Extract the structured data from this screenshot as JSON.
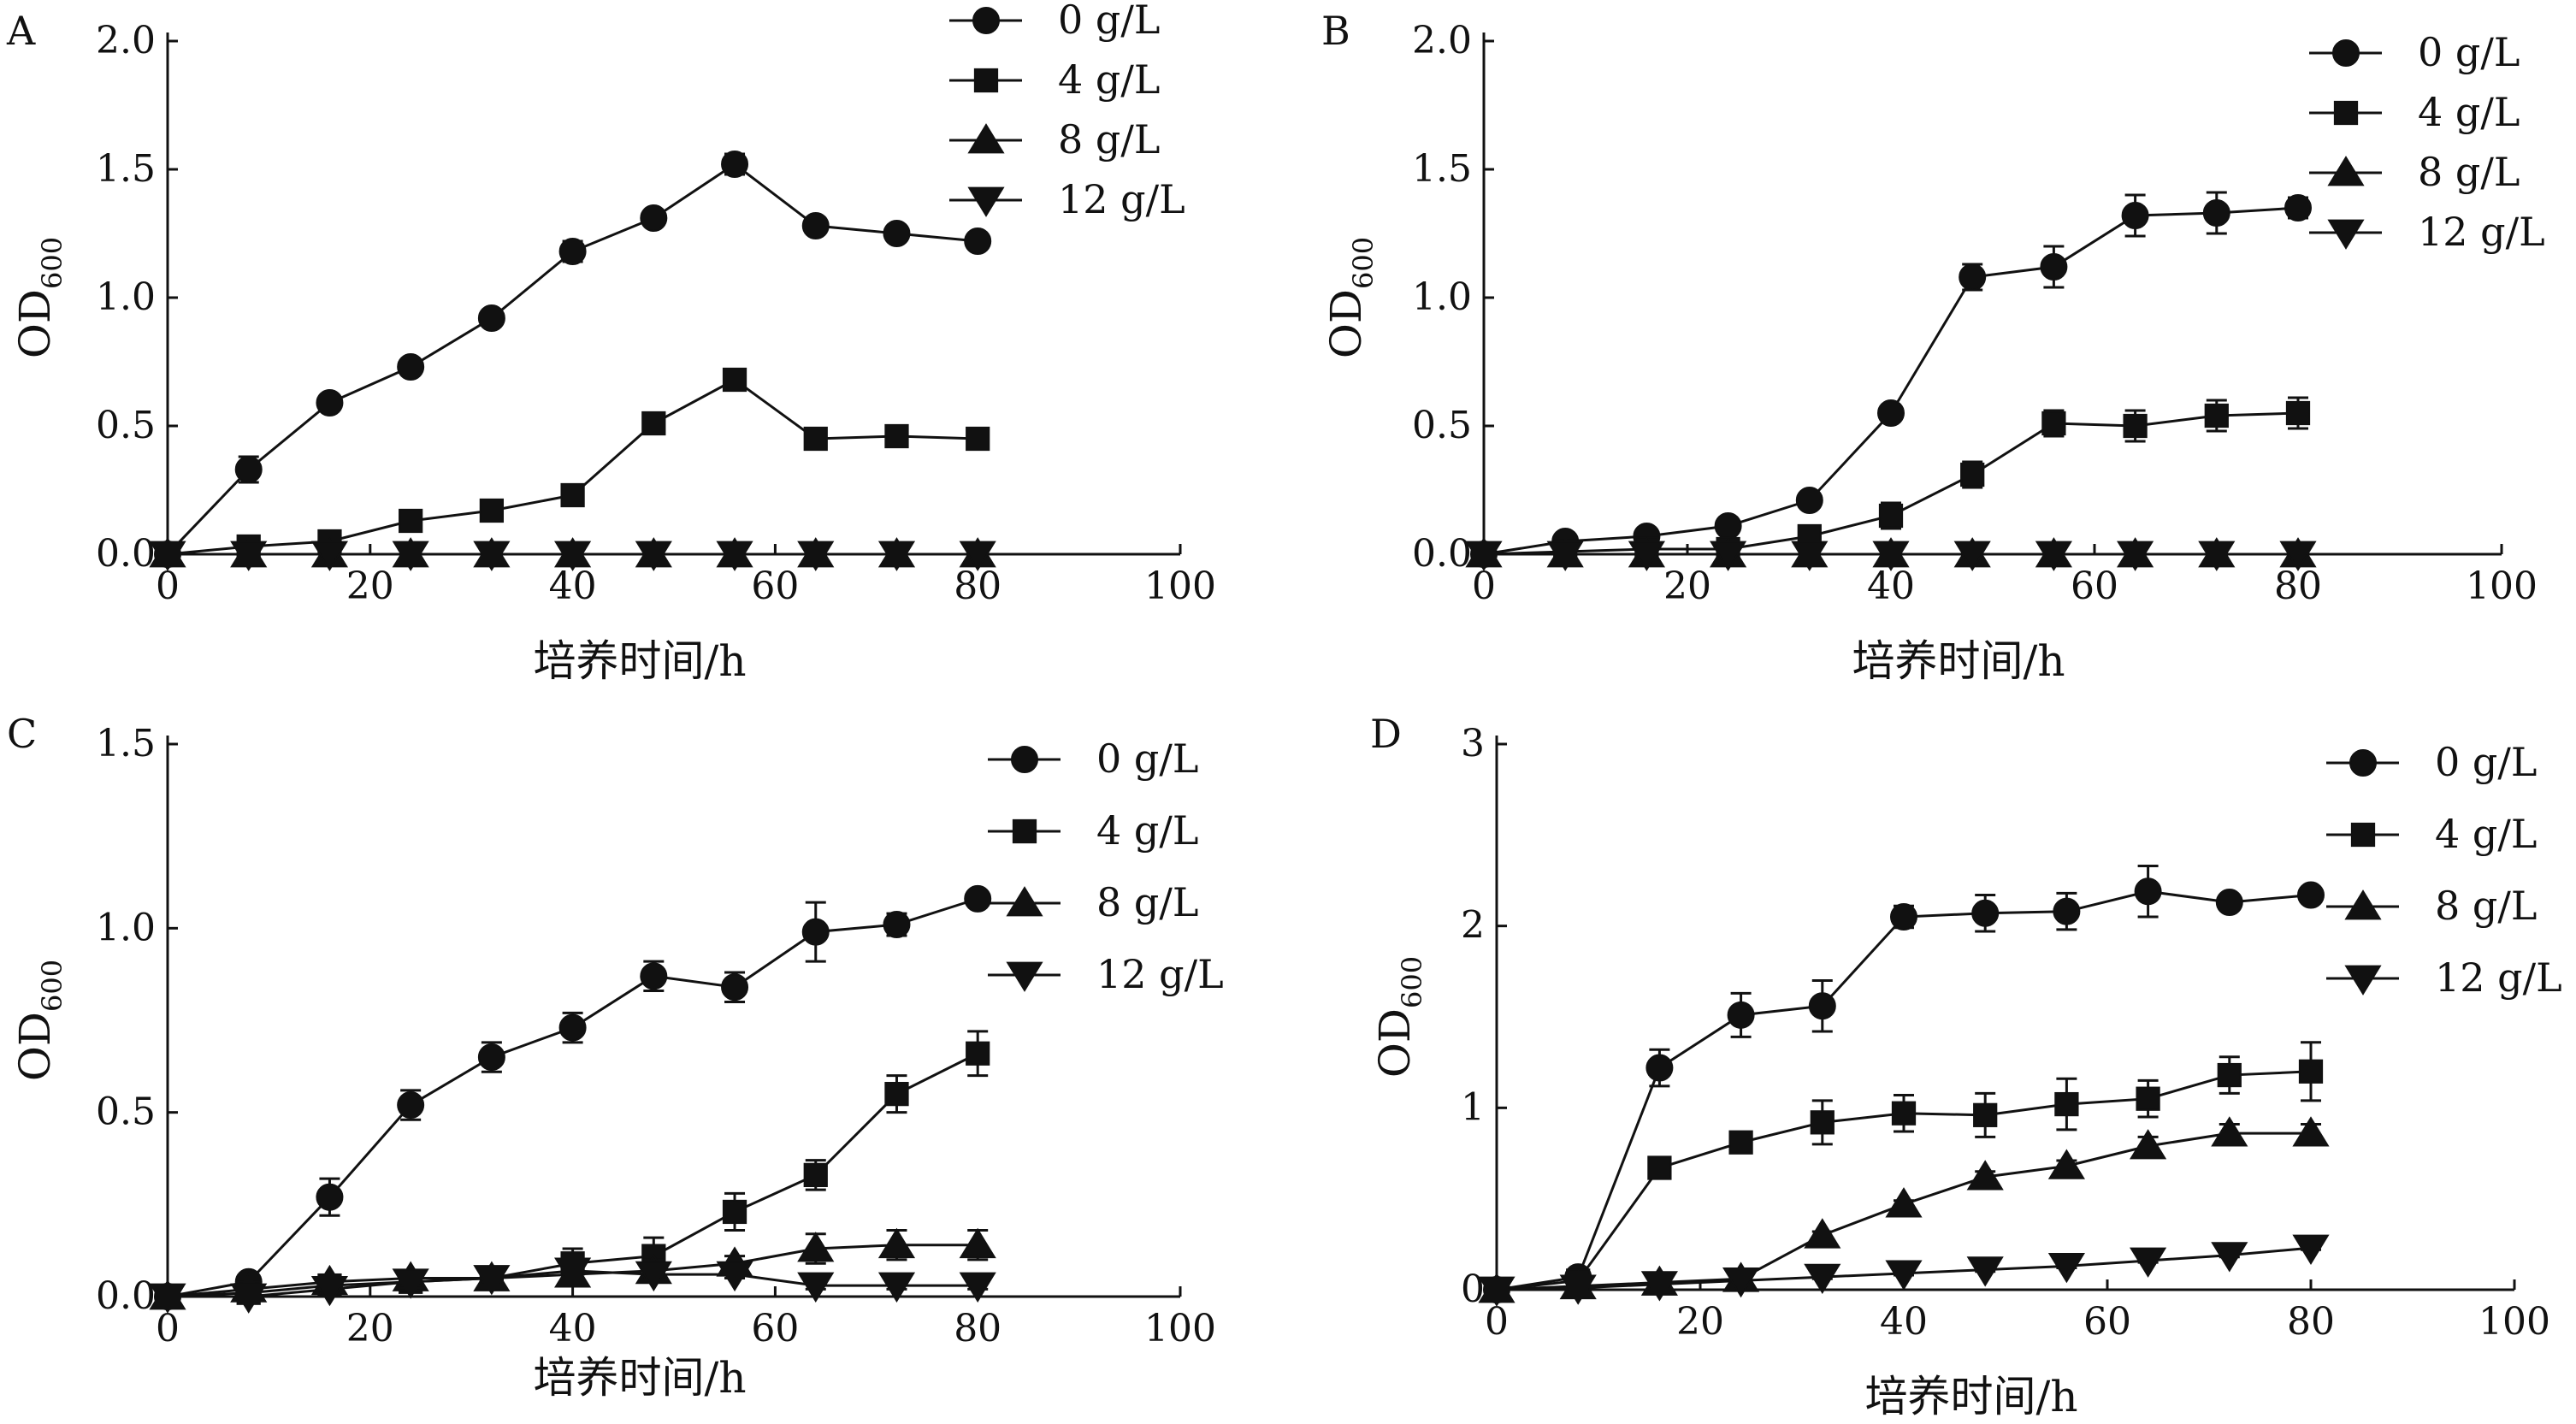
{
  "chart_data": [
    {
      "type": "line",
      "panel": "A",
      "xlabel": "培养时间/h",
      "ylabel": "OD",
      "ylabel_sub": "600",
      "xlim": [
        0,
        100
      ],
      "ylim": [
        0,
        2.0
      ],
      "xticks": [
        0,
        20,
        40,
        60,
        80,
        100
      ],
      "xtick_labels": [
        "0",
        "20",
        "40",
        "60",
        "80",
        "100"
      ],
      "yticks": [
        0,
        0.5,
        1.0,
        1.5,
        2.0
      ],
      "ytick_labels": [
        "0.0",
        "0.5",
        "1.0",
        "1.5",
        "2.0"
      ],
      "legend_position": "top-right",
      "x": [
        0,
        8,
        16,
        24,
        32,
        40,
        48,
        56,
        64,
        72,
        80
      ],
      "series": [
        {
          "name": "0 g/L",
          "marker": "circle",
          "values": [
            0.0,
            0.33,
            0.59,
            0.73,
            0.92,
            1.18,
            1.31,
            1.52,
            1.28,
            1.25,
            1.22
          ],
          "errors": [
            0,
            0.05,
            0.02,
            0.03,
            0.02,
            0.04,
            0.02,
            0.04,
            0.02,
            0.02,
            0.02
          ]
        },
        {
          "name": "4 g/L",
          "marker": "square",
          "values": [
            0.0,
            0.03,
            0.05,
            0.13,
            0.17,
            0.23,
            0.51,
            0.68,
            0.45,
            0.46,
            0.45
          ],
          "errors": [
            0,
            0.01,
            0.01,
            0.02,
            0.02,
            0.02,
            0.03,
            0.03,
            0.02,
            0.02,
            0.02
          ]
        },
        {
          "name": "8 g/L",
          "marker": "triangle-up",
          "values": [
            0.0,
            0.0,
            0.0,
            0.0,
            0.0,
            0.0,
            0.0,
            0.0,
            0.0,
            0.0,
            0.0
          ],
          "errors": [
            0,
            0,
            0,
            0,
            0,
            0,
            0,
            0,
            0,
            0,
            0
          ]
        },
        {
          "name": "12 g/L",
          "marker": "triangle-down",
          "values": [
            0.0,
            0.0,
            0.0,
            0.0,
            0.0,
            0.0,
            0.0,
            0.0,
            0.0,
            0.0,
            0.0
          ],
          "errors": [
            0,
            0,
            0,
            0,
            0,
            0,
            0,
            0,
            0,
            0,
            0
          ]
        }
      ]
    },
    {
      "type": "line",
      "panel": "B",
      "xlabel": "培养时间/h",
      "ylabel": "OD",
      "ylabel_sub": "600",
      "xlim": [
        0,
        100
      ],
      "ylim": [
        0,
        2.0
      ],
      "xticks": [
        0,
        20,
        40,
        60,
        80,
        100
      ],
      "xtick_labels": [
        "0",
        "20",
        "40",
        "60",
        "80",
        "100"
      ],
      "yticks": [
        0,
        0.5,
        1.0,
        1.5,
        2.0
      ],
      "ytick_labels": [
        "0.0",
        "0.5",
        "1.0",
        "1.5",
        "2.0"
      ],
      "legend_position": "top-right",
      "x": [
        0,
        8,
        16,
        24,
        32,
        40,
        48,
        56,
        64,
        72,
        80
      ],
      "series": [
        {
          "name": "0 g/L",
          "marker": "circle",
          "values": [
            0.0,
            0.05,
            0.07,
            0.11,
            0.21,
            0.55,
            1.08,
            1.12,
            1.32,
            1.33,
            1.35
          ],
          "errors": [
            0,
            0.01,
            0.01,
            0.01,
            0.01,
            0.02,
            0.05,
            0.08,
            0.08,
            0.08,
            0.04
          ]
        },
        {
          "name": "4 g/L",
          "marker": "square",
          "values": [
            0.0,
            0.01,
            0.02,
            0.02,
            0.07,
            0.15,
            0.31,
            0.51,
            0.5,
            0.54,
            0.55
          ],
          "errors": [
            0,
            0.01,
            0.01,
            0.01,
            0.02,
            0.05,
            0.05,
            0.05,
            0.06,
            0.06,
            0.06
          ]
        },
        {
          "name": "8 g/L",
          "marker": "triangle-up",
          "values": [
            0.0,
            0.0,
            0.0,
            0.0,
            0.0,
            0.0,
            0.0,
            0.0,
            0.0,
            0.0,
            0.0
          ],
          "errors": [
            0,
            0,
            0,
            0,
            0,
            0,
            0,
            0,
            0,
            0,
            0
          ]
        },
        {
          "name": "12 g/L",
          "marker": "triangle-down",
          "values": [
            0.0,
            0.0,
            0.0,
            0.0,
            0.0,
            0.0,
            0.0,
            0.0,
            0.0,
            0.0,
            0.0
          ],
          "errors": [
            0,
            0,
            0,
            0,
            0,
            0,
            0,
            0,
            0,
            0,
            0
          ]
        }
      ]
    },
    {
      "type": "line",
      "panel": "C",
      "xlabel": "培养时间/h",
      "ylabel": "OD",
      "ylabel_sub": "600",
      "xlim": [
        0,
        100
      ],
      "ylim": [
        0,
        1.5
      ],
      "xticks": [
        0,
        20,
        40,
        60,
        80,
        100
      ],
      "xtick_labels": [
        "0",
        "20",
        "40",
        "60",
        "80",
        "100"
      ],
      "yticks": [
        0,
        0.5,
        1.0,
        1.5
      ],
      "ytick_labels": [
        "0.0",
        "0.5",
        "1.0",
        "1.5"
      ],
      "legend_position": "top-right",
      "x": [
        0,
        8,
        16,
        24,
        32,
        40,
        48,
        56,
        64,
        72,
        80
      ],
      "series": [
        {
          "name": "0 g/L",
          "marker": "circle",
          "values": [
            0.0,
            0.04,
            0.27,
            0.52,
            0.65,
            0.73,
            0.87,
            0.84,
            0.99,
            1.01,
            1.08
          ],
          "errors": [
            0,
            0.02,
            0.05,
            0.04,
            0.04,
            0.04,
            0.04,
            0.04,
            0.08,
            0.03,
            0.02
          ]
        },
        {
          "name": "4 g/L",
          "marker": "square",
          "values": [
            0.0,
            0.01,
            0.03,
            0.04,
            0.05,
            0.09,
            0.11,
            0.23,
            0.33,
            0.55,
            0.66
          ],
          "errors": [
            0,
            0.01,
            0.01,
            0.01,
            0.02,
            0.04,
            0.05,
            0.05,
            0.04,
            0.05,
            0.06
          ]
        },
        {
          "name": "8 g/L",
          "marker": "triangle-up",
          "values": [
            0.0,
            0.02,
            0.04,
            0.05,
            0.05,
            0.06,
            0.07,
            0.09,
            0.13,
            0.14,
            0.14
          ],
          "errors": [
            0,
            0.01,
            0.01,
            0.01,
            0.01,
            0.02,
            0.03,
            0.02,
            0.04,
            0.04,
            0.04
          ]
        },
        {
          "name": "12 g/L",
          "marker": "triangle-down",
          "values": [
            0.0,
            0.0,
            0.02,
            0.04,
            0.05,
            0.07,
            0.06,
            0.06,
            0.03,
            0.03,
            0.03
          ],
          "errors": [
            0,
            0,
            0.01,
            0.01,
            0.01,
            0.01,
            0.01,
            0.01,
            0.01,
            0.01,
            0.01
          ]
        }
      ]
    },
    {
      "type": "line",
      "panel": "D",
      "xlabel": "培养时间/h",
      "ylabel": "OD",
      "ylabel_sub": "600",
      "xlim": [
        0,
        100
      ],
      "ylim": [
        0,
        3
      ],
      "xticks": [
        0,
        20,
        40,
        60,
        80,
        100
      ],
      "xtick_labels": [
        "0",
        "20",
        "40",
        "60",
        "80",
        "100"
      ],
      "yticks": [
        0,
        1,
        2,
        3
      ],
      "ytick_labels": [
        "0",
        "1",
        "2",
        "3"
      ],
      "legend_position": "top-right",
      "x": [
        0,
        8,
        16,
        24,
        32,
        40,
        48,
        56,
        64,
        72,
        80
      ],
      "series": [
        {
          "name": "0 g/L",
          "marker": "circle",
          "values": [
            0.0,
            0.07,
            1.22,
            1.51,
            1.56,
            2.05,
            2.07,
            2.08,
            2.19,
            2.13,
            2.17
          ],
          "errors": [
            0,
            0.03,
            0.1,
            0.12,
            0.14,
            0.06,
            0.1,
            0.1,
            0.14,
            0.03,
            0.03
          ]
        },
        {
          "name": "4 g/L",
          "marker": "square",
          "values": [
            0.0,
            0.05,
            0.67,
            0.81,
            0.92,
            0.97,
            0.96,
            1.02,
            1.05,
            1.18,
            1.2
          ],
          "errors": [
            0,
            0.02,
            0.04,
            0.05,
            0.12,
            0.1,
            0.12,
            0.14,
            0.1,
            0.1,
            0.16
          ]
        },
        {
          "name": "8 g/L",
          "marker": "triangle-up",
          "values": [
            0.0,
            0.02,
            0.04,
            0.06,
            0.3,
            0.47,
            0.62,
            0.68,
            0.79,
            0.86,
            0.86
          ],
          "errors": [
            0,
            0.01,
            0.01,
            0.01,
            0.02,
            0.02,
            0.03,
            0.03,
            0.05,
            0.05,
            0.05
          ]
        },
        {
          "name": "12 g/L",
          "marker": "triangle-down",
          "values": [
            0.0,
            0.01,
            0.03,
            0.05,
            0.07,
            0.09,
            0.11,
            0.13,
            0.16,
            0.19,
            0.23
          ],
          "errors": [
            0,
            0.01,
            0.01,
            0.01,
            0.01,
            0.01,
            0.01,
            0.01,
            0.01,
            0.01,
            0.01
          ]
        }
      ]
    }
  ]
}
